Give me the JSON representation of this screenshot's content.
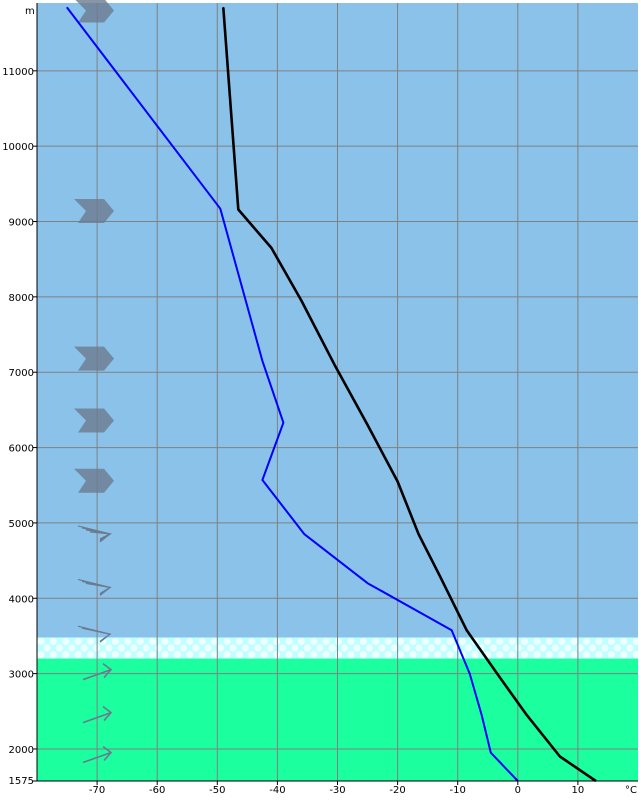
{
  "chart_data": {
    "type": "line",
    "title": "",
    "xlabel": "°C",
    "ylabel": "m",
    "xlim": [
      -80,
      20
    ],
    "ylim": [
      1575,
      11900
    ],
    "grid": true,
    "x_ticks": [
      -70,
      -60,
      -50,
      -40,
      -30,
      -20,
      -10,
      0,
      10
    ],
    "x_tick_labels": [
      "-70",
      "-60",
      "-50",
      "-40",
      "-30",
      "-20",
      "-10",
      "0",
      "10"
    ],
    "y_ticks": [
      1575,
      2000,
      3000,
      4000,
      5000,
      6000,
      7000,
      8000,
      9000,
      10000,
      11000
    ],
    "y_tick_labels": [
      "1575",
      "2000",
      "3000",
      "4000",
      "5000",
      "6000",
      "7000",
      "8000",
      "9000",
      "10000",
      "11000"
    ],
    "series": [
      {
        "color": "#000000",
        "points": [
          [
            13,
            1575
          ],
          [
            7,
            1900
          ],
          [
            1.5,
            2450
          ],
          [
            -3,
            2950
          ],
          [
            -8.5,
            3575
          ],
          [
            -13,
            4300
          ],
          [
            -16.5,
            4850
          ],
          [
            -20,
            5550
          ],
          [
            -25,
            6300
          ],
          [
            -30.5,
            7100
          ],
          [
            -36,
            7950
          ],
          [
            -41,
            8650
          ],
          [
            -46.5,
            9160
          ],
          [
            -49,
            11840
          ]
        ]
      },
      {
        "color": "#0000ff",
        "points": [
          [
            0,
            1575
          ],
          [
            -4.5,
            1950
          ],
          [
            -6,
            2450
          ],
          [
            -8,
            3000
          ],
          [
            -11,
            3575
          ],
          [
            -25,
            4200
          ],
          [
            -35.5,
            4850
          ],
          [
            -42.5,
            5570
          ],
          [
            -39,
            6330
          ],
          [
            -42.5,
            7150
          ],
          [
            -49.5,
            9170
          ],
          [
            -75,
            11840
          ]
        ]
      }
    ],
    "bands": [
      {
        "from": 1575,
        "to": 3200,
        "color": "#1cff9e"
      },
      {
        "from": 3200,
        "to": 3480,
        "color": "#bfffff"
      },
      {
        "from": 3480,
        "to": 11900,
        "color": "#8ac2ea"
      }
    ],
    "wind_markers": [
      {
        "height": 1900,
        "style": "arrow-light"
      },
      {
        "height": 2430,
        "style": "arrow-light"
      },
      {
        "height": 3000,
        "style": "arrow-light"
      },
      {
        "height": 3550,
        "style": "feather-2"
      },
      {
        "height": 4170,
        "style": "feather-3"
      },
      {
        "height": 4880,
        "style": "feather-4"
      },
      {
        "height": 5560,
        "style": "chevron"
      },
      {
        "height": 6360,
        "style": "chevron"
      },
      {
        "height": 7180,
        "style": "chevron"
      },
      {
        "height": 9140,
        "style": "chevron"
      },
      {
        "height": 11800,
        "style": "chevron"
      }
    ],
    "colors": {
      "sky": "#8ac2ea",
      "low_band": "#1cff9e",
      "cloud_band": "#bfffff",
      "grid": "#808080",
      "marker": "#6b7a8f"
    }
  }
}
